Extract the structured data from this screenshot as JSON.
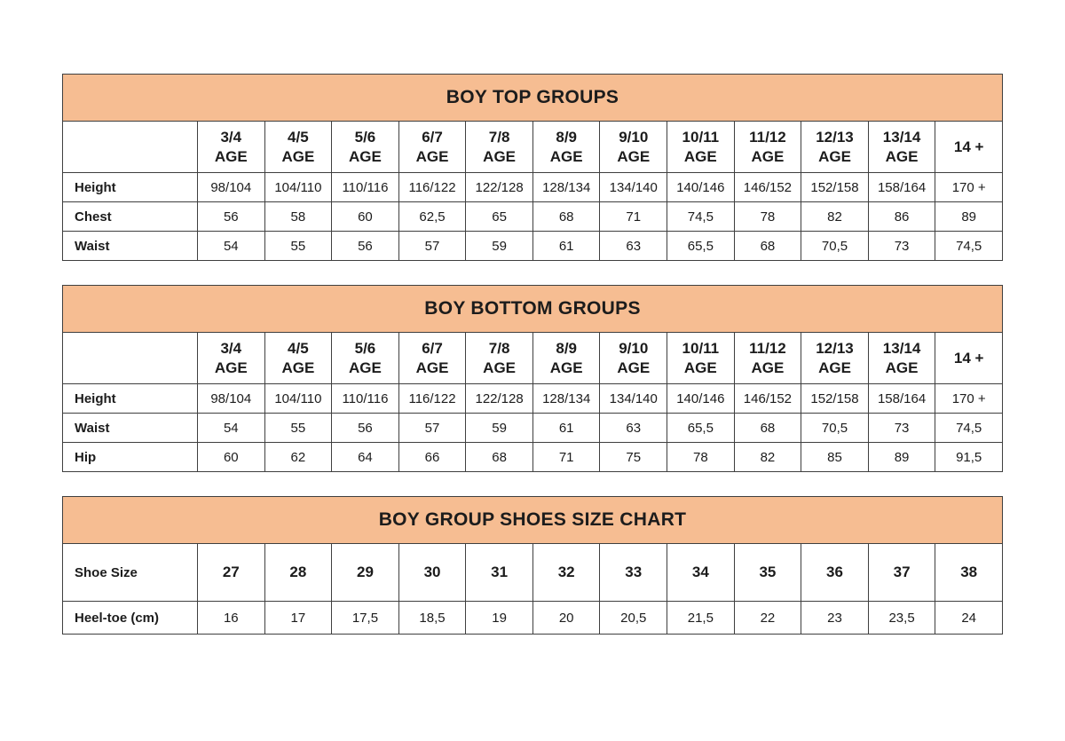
{
  "colors": {
    "band_background": "#f6bd92",
    "border": "#3f3f3f",
    "text": "#1c1c1c",
    "page_background": "#ffffff"
  },
  "age_columns": [
    "3/4\nAGE",
    "4/5\nAGE",
    "5/6\nAGE",
    "6/7\nAGE",
    "7/8\nAGE",
    "8/9\nAGE",
    "9/10\nAGE",
    "10/11\nAGE",
    "11/12\nAGE",
    "12/13\nAGE",
    "13/14\nAGE",
    "14 +"
  ],
  "tables": [
    {
      "title": "BOY TOP GROUPS",
      "rows": [
        {
          "label": "Height",
          "values": [
            "98/104",
            "104/110",
            "110/116",
            "116/122",
            "122/128",
            "128/134",
            "134/140",
            "140/146",
            "146/152",
            "152/158",
            "158/164",
            "170 +"
          ]
        },
        {
          "label": "Chest",
          "values": [
            "56",
            "58",
            "60",
            "62,5",
            "65",
            "68",
            "71",
            "74,5",
            "78",
            "82",
            "86",
            "89"
          ]
        },
        {
          "label": "Waist",
          "values": [
            "54",
            "55",
            "56",
            "57",
            "59",
            "61",
            "63",
            "65,5",
            "68",
            "70,5",
            "73",
            "74,5"
          ]
        }
      ]
    },
    {
      "title": "BOY BOTTOM GROUPS",
      "rows": [
        {
          "label": "Height",
          "values": [
            "98/104",
            "104/110",
            "110/116",
            "116/122",
            "122/128",
            "128/134",
            "134/140",
            "140/146",
            "146/152",
            "152/158",
            "158/164",
            "170 +"
          ]
        },
        {
          "label": "Waist",
          "values": [
            "54",
            "55",
            "56",
            "57",
            "59",
            "61",
            "63",
            "65,5",
            "68",
            "70,5",
            "73",
            "74,5"
          ]
        },
        {
          "label": "Hip",
          "values": [
            "60",
            "62",
            "64",
            "66",
            "68",
            "71",
            "75",
            "78",
            "82",
            "85",
            "89",
            "91,5"
          ]
        }
      ]
    },
    {
      "title": "BOY GROUP SHOES SIZE CHART",
      "rows": [
        {
          "label": "Shoe Size",
          "values": [
            "27",
            "28",
            "29",
            "30",
            "31",
            "32",
            "33",
            "34",
            "35",
            "36",
            "37",
            "38"
          ]
        },
        {
          "label": "Heel-toe (cm)",
          "values": [
            "16",
            "17",
            "17,5",
            "18,5",
            "19",
            "20",
            "20,5",
            "21,5",
            "22",
            "23",
            "23,5",
            "24"
          ]
        }
      ]
    }
  ]
}
